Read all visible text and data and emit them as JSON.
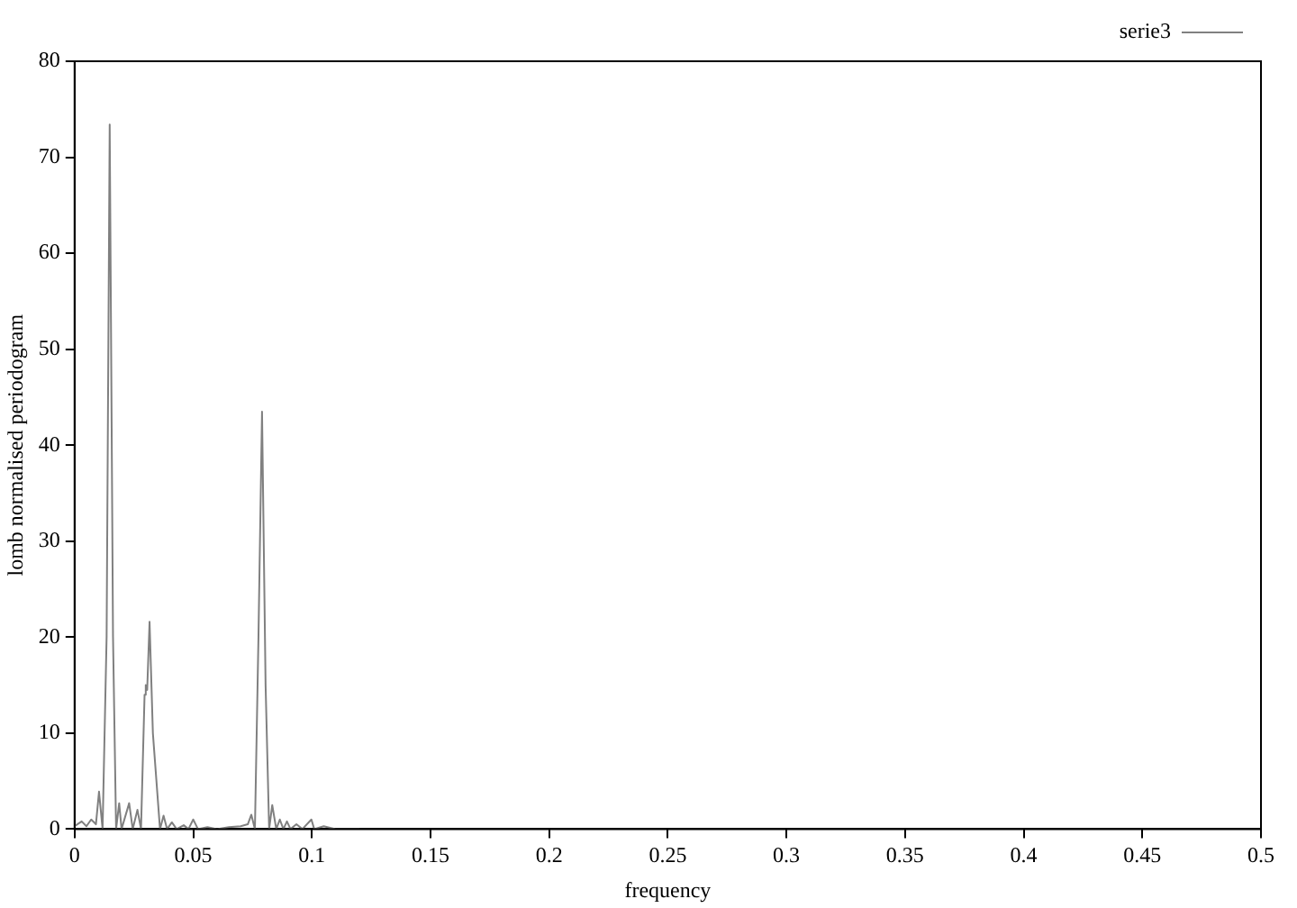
{
  "chart_data": {
    "type": "line",
    "xlabel": "frequency",
    "ylabel": "lomb normalised periodogram",
    "xlim": [
      0,
      0.5
    ],
    "xticks": [
      0,
      0.05,
      0.1,
      0.15,
      0.2,
      0.25,
      0.3,
      0.35,
      0.4,
      0.45,
      0.5
    ],
    "ylim": [
      0,
      80
    ],
    "yticks": [
      0,
      10,
      20,
      30,
      40,
      50,
      60,
      70,
      80
    ],
    "grid": false,
    "legend": "top right",
    "marker": "none",
    "line_style": "solid",
    "series": [
      {
        "name": "serie3",
        "color": "#808080",
        "x": [
          0,
          0.003,
          0.005,
          0.007,
          0.009,
          0.0103,
          0.0118,
          0.0135,
          0.0148,
          0.0162,
          0.0175,
          0.0188,
          0.0198,
          0.023,
          0.0245,
          0.0265,
          0.028,
          0.0295,
          0.03,
          0.0306,
          0.0316,
          0.033,
          0.0345,
          0.036,
          0.0375,
          0.039,
          0.041,
          0.043,
          0.046,
          0.048,
          0.05,
          0.052,
          0.056,
          0.06,
          0.065,
          0.07,
          0.073,
          0.0745,
          0.076,
          0.0775,
          0.079,
          0.0805,
          0.082,
          0.0833,
          0.085,
          0.0865,
          0.088,
          0.0895,
          0.091,
          0.0935,
          0.096,
          0.0998,
          0.101,
          0.105,
          0.11,
          0.12
        ],
        "values": [
          0.3,
          0.8,
          0.3,
          1,
          0.5,
          3.9,
          0,
          20,
          73.4,
          20,
          0,
          2.7,
          0,
          2.7,
          0,
          2,
          0,
          14,
          15,
          14.5,
          21.6,
          10,
          5,
          0,
          1.4,
          0,
          0.7,
          0,
          0.4,
          0,
          1,
          0,
          0.2,
          0,
          0.2,
          0.3,
          0.5,
          1.5,
          0,
          20,
          43.5,
          15,
          0,
          2.5,
          0,
          1,
          0,
          0.8,
          0,
          0.5,
          0,
          1,
          0,
          0.3,
          0,
          0
        ]
      }
    ]
  }
}
